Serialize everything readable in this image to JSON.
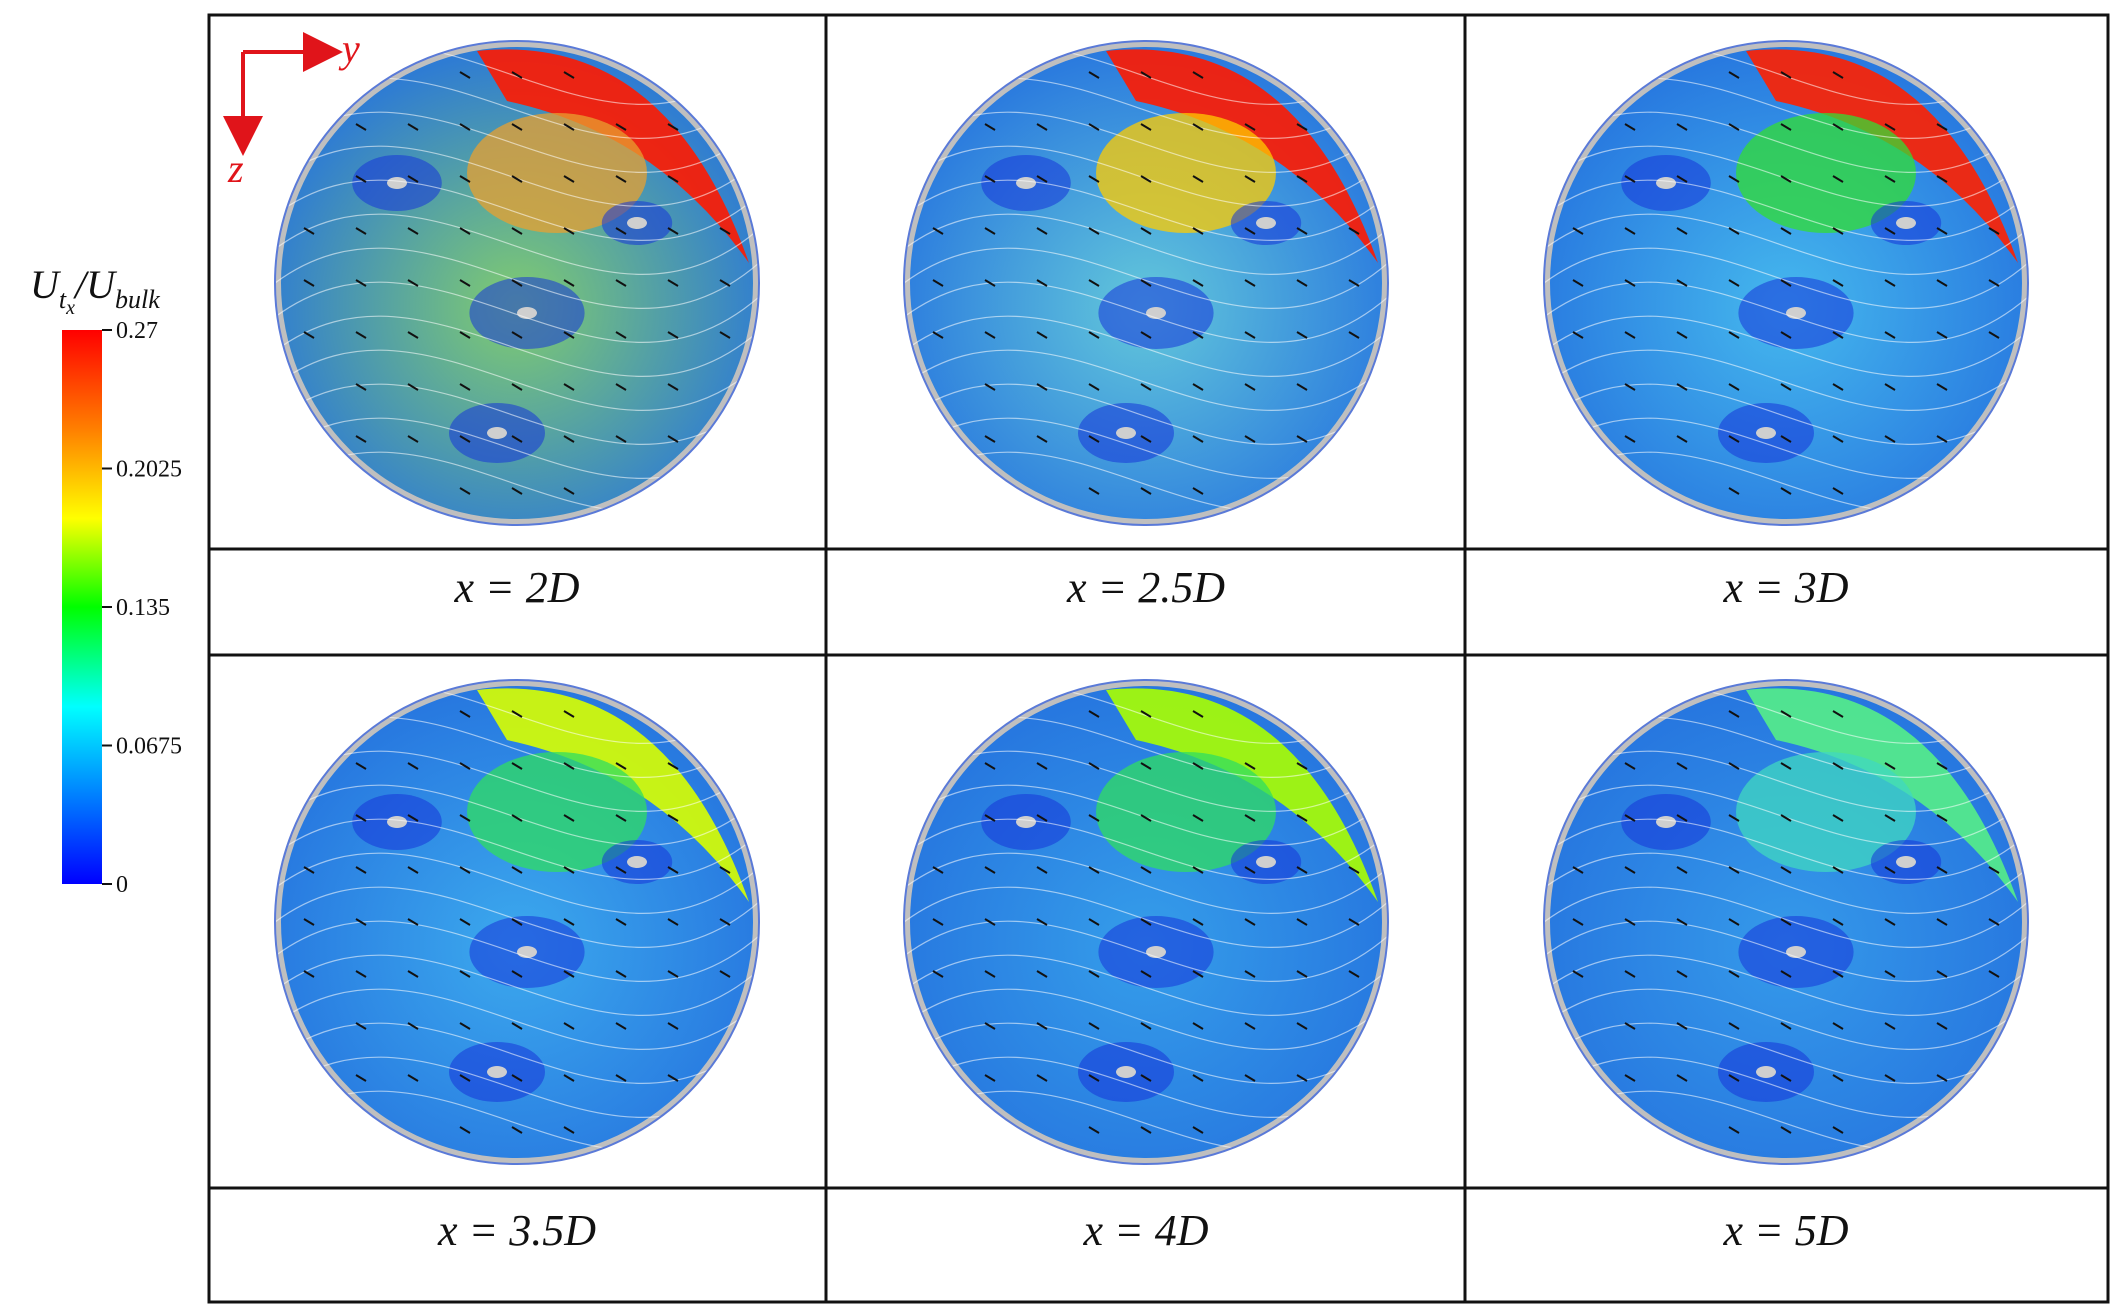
{
  "colorbar": {
    "title_main": "U",
    "title_sub": "t",
    "title_subsub": "x",
    "title_slash": "/U",
    "title_denom_sub": "bulk",
    "ticks": [
      "0.27",
      "0.2025",
      "0.135",
      "0.0675",
      "0"
    ],
    "min": 0,
    "max": 0.27,
    "colors": [
      "#ff0000",
      "#ff8000",
      "#ffff00",
      "#00ff00",
      "#00ffff",
      "#0080ff",
      "#0000ff"
    ]
  },
  "axes": {
    "y_label": "y",
    "z_label": "z",
    "color": "#e0141a"
  },
  "panels": [
    {
      "label": "x = 2D",
      "dominant": "#7ecd6a",
      "hot": "#ff1a00",
      "hot2": "#e8a030"
    },
    {
      "label": "x = 2.5D",
      "dominant": "#5ec8dc",
      "hot": "#ff1a00",
      "hot2": "#ffcc00"
    },
    {
      "label": "x = 3D",
      "dominant": "#3fb8f0",
      "hot": "#ff2000",
      "hot2": "#33dd33"
    },
    {
      "label": "x = 3.5D",
      "dominant": "#35a8f0",
      "hot": "#d8ff00",
      "hot2": "#30dd60"
    },
    {
      "label": "x = 4D",
      "dominant": "#2e9cec",
      "hot": "#aaff00",
      "hot2": "#30dd60"
    },
    {
      "label": "x = 5D",
      "dominant": "#2e98ec",
      "hot": "#55ee88",
      "hot2": "#40d8c0"
    }
  ]
}
